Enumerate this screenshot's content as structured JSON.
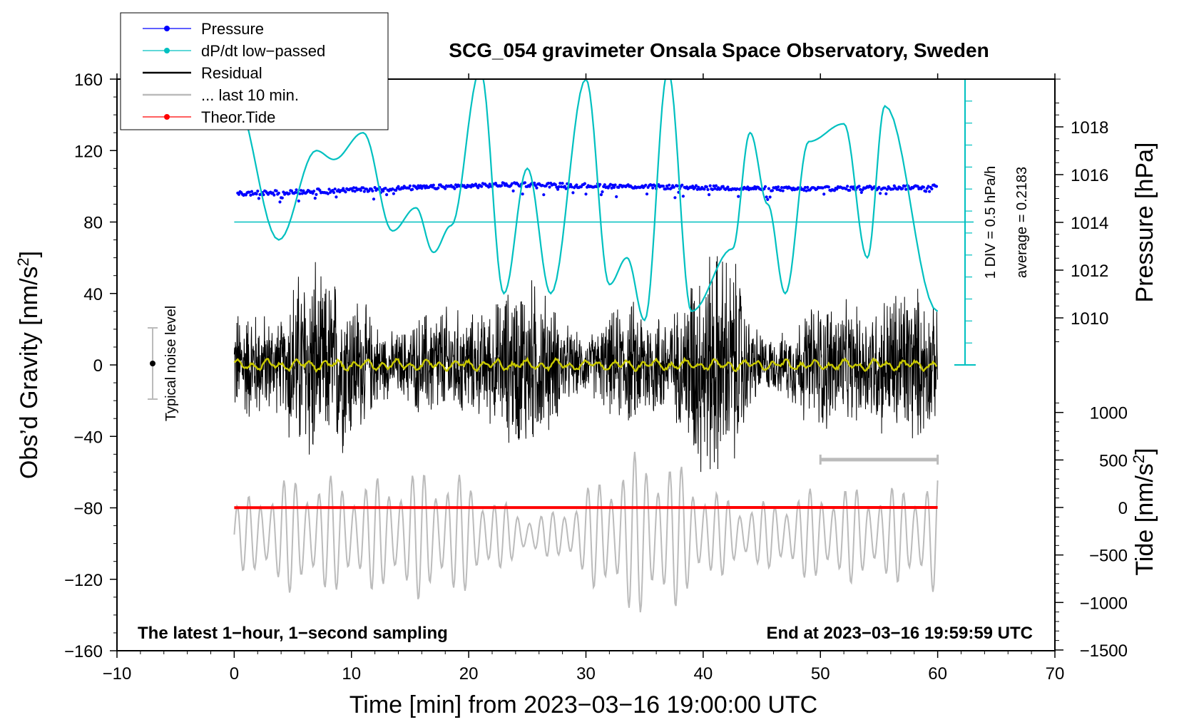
{
  "chart_data": {
    "type": "line",
    "title": "SCG_054 gravimeter Onsala Space Observatory, Sweden",
    "xlabel": "Time [min] from 2023−03−16 19:00:00 UTC",
    "ylabel_main": "Obs’d Gravity [nm/s",
    "ylabel_main_sup": "2",
    "ylabel_main_end": "]",
    "ylabel_pressure": "Pressure [hPa]",
    "ylabel_tide": "Tide [nm/s",
    "ylabel_tide_sup": "2",
    "ylabel_tide_end": "]",
    "xlim": [
      -10,
      70
    ],
    "ylim": [
      -160,
      160
    ],
    "x_ticks": [
      "−10",
      "0",
      "10",
      "20",
      "30",
      "40",
      "50",
      "60",
      "70"
    ],
    "x_tick_values": [
      -10,
      0,
      10,
      20,
      30,
      40,
      50,
      60,
      70
    ],
    "y_ticks": [
      "160",
      "120",
      "80",
      "40",
      "0",
      "−40",
      "−80",
      "−120",
      "−160"
    ],
    "y_tick_values": [
      160,
      120,
      80,
      40,
      0,
      -40,
      -80,
      -120,
      -160
    ],
    "pressure_ticks": [
      "1018",
      "1016",
      "1014",
      "1012",
      "1010"
    ],
    "pressure_tick_values": [
      1018,
      1016,
      1014,
      1012,
      1010
    ],
    "pressure_ylim": [
      1008,
      1020
    ],
    "tide_ticks": [
      "1000",
      "500",
      "0",
      "−500",
      "−1000",
      "−1500"
    ],
    "tide_tick_values": [
      1000,
      500,
      0,
      -500,
      -1000,
      -1500
    ],
    "tide_ylim": [
      -1500,
      1500
    ],
    "legend": [
      {
        "label": "Pressure",
        "color": "#0000ff",
        "style": "line-dot"
      },
      {
        "label": "dP/dt low−passed",
        "color": "#00c0c0",
        "style": "line-dot"
      },
      {
        "label": "Residual",
        "color": "#000000",
        "style": "line"
      },
      {
        "label": "... last 10 min.",
        "color": "#bbbbbb",
        "style": "line"
      },
      {
        "label": "Theor.Tide",
        "color": "#ff0000",
        "style": "line-dot"
      }
    ],
    "annotations": {
      "dpdt_scale": "1 DIV = 0.5 hPa/h",
      "dpdt_average": "average = 0.2183",
      "noise_label": "Typical noise level",
      "bottom_left": "The latest 1−hour, 1−second sampling",
      "bottom_right": "End at 2023−03−16 19:59:59 UTC"
    },
    "series": [
      {
        "name": "Pressure",
        "unit": "hPa",
        "x_range": [
          0,
          60
        ],
        "approx_values": [
          1015.2,
          1015.4,
          1015.6,
          1015.5,
          1015.4,
          1015.5
        ]
      },
      {
        "name": "dP/dt low-passed",
        "baseline_gravity_units": 80,
        "x": [
          0,
          3.8,
          7,
          8.5,
          11,
          13.5,
          15.5,
          17,
          18.5,
          21,
          23,
          25,
          27,
          30,
          32,
          33.5,
          35,
          37,
          39,
          42.5,
          44,
          45.5,
          47,
          49,
          52,
          54,
          55.5,
          60
        ],
        "gravity_units": [
          150,
          70,
          120,
          115,
          130,
          75,
          88,
          63,
          78,
          165,
          40,
          110,
          40,
          160,
          45,
          60,
          25,
          165,
          30,
          65,
          130,
          90,
          40,
          125,
          135,
          60,
          145,
          30
        ]
      },
      {
        "name": "Residual",
        "unit": "nm/s2",
        "x_range": [
          0,
          60
        ],
        "amplitude_range": [
          -70,
          70
        ]
      },
      {
        "name": "... last 10 min.",
        "x_range": [
          50,
          60
        ],
        "level": -53
      },
      {
        "name": "Theor.Tide",
        "unit": "nm/s2",
        "x_range": [
          0,
          60
        ],
        "level": 0
      }
    ]
  }
}
